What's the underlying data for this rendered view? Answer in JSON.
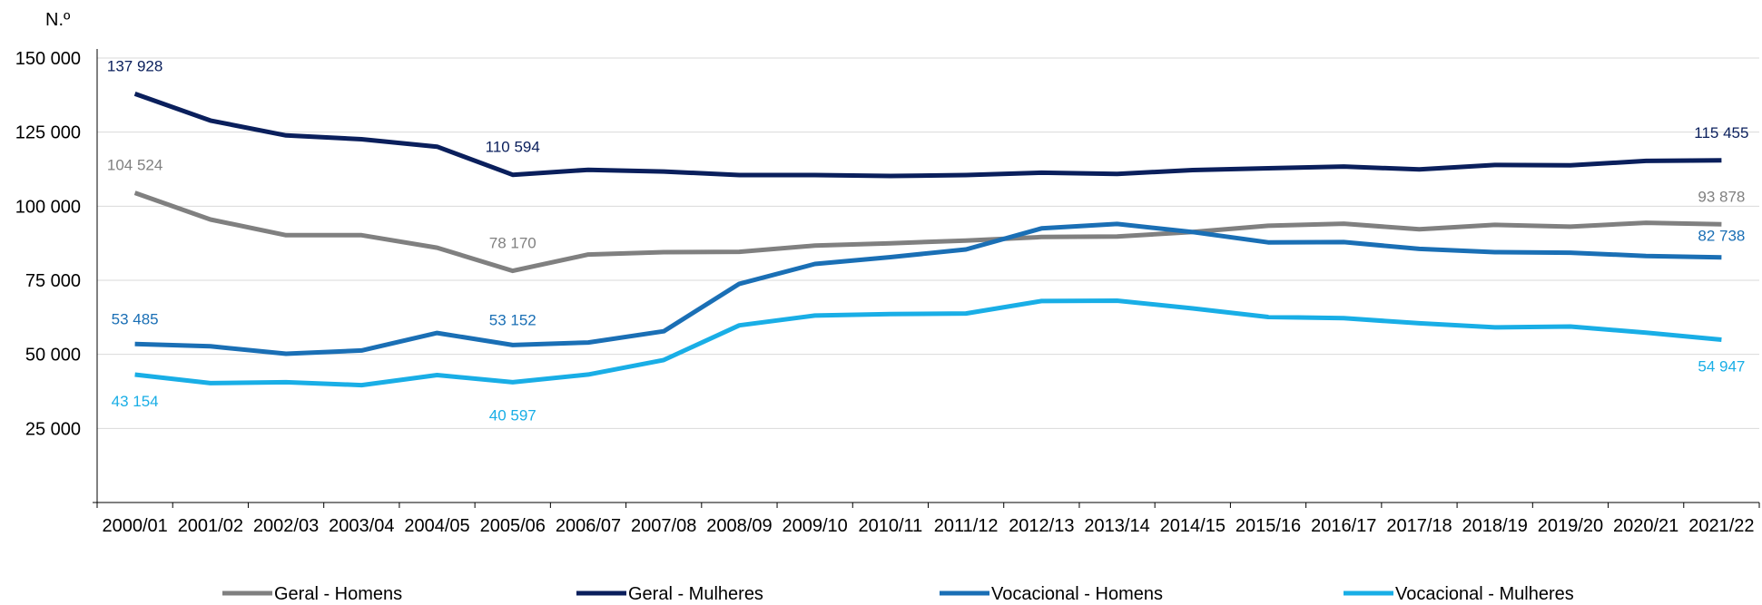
{
  "chart_data": {
    "type": "line",
    "unit_label": "N.º",
    "ylim": [
      0,
      150000
    ],
    "y_ticks": [
      "150 000",
      "125 000",
      "100 000",
      "75 000",
      "50 000",
      "25 000"
    ],
    "y_tick_values": [
      150000,
      125000,
      100000,
      75000,
      50000,
      25000
    ],
    "grid": true,
    "legend_position": "bottom",
    "categories": [
      "2000/01",
      "2001/02",
      "2002/03",
      "2003/04",
      "2004/05",
      "2005/06",
      "2006/07",
      "2007/08",
      "2008/09",
      "2009/10",
      "2010/11",
      "2011/12",
      "2012/13",
      "2013/14",
      "2014/15",
      "2015/16",
      "2016/17",
      "2017/18",
      "2018/19",
      "2019/20",
      "2020/21",
      "2021/22"
    ],
    "series": [
      {
        "name": "Geral - Homens",
        "color": "#808080",
        "values": [
          104524,
          95500,
          90200,
          90200,
          86000,
          78170,
          83700,
          84500,
          84600,
          86700,
          87500,
          88400,
          89600,
          89800,
          91300,
          93400,
          94100,
          92200,
          93700,
          93100,
          94400,
          93878
        ],
        "labels": [
          {
            "index": 0,
            "text": "104 524"
          },
          {
            "index": 5,
            "text": "78 170"
          },
          {
            "index": 21,
            "text": "93 878"
          }
        ]
      },
      {
        "name": "Geral - Mulheres",
        "color": "#0a1f5c",
        "values": [
          137928,
          128900,
          123900,
          122600,
          120100,
          110594,
          112300,
          111700,
          110500,
          110500,
          110200,
          110500,
          111300,
          110900,
          112200,
          112800,
          113400,
          112400,
          113900,
          113800,
          115300,
          115455
        ],
        "labels": [
          {
            "index": 0,
            "text": "137 928"
          },
          {
            "index": 5,
            "text": "110 594"
          },
          {
            "index": 21,
            "text": "115 455"
          }
        ]
      },
      {
        "name": "Vocacional - Homens",
        "color": "#1a6fb5",
        "values": [
          53485,
          52700,
          50200,
          51300,
          57200,
          53152,
          54000,
          57800,
          73800,
          80500,
          82800,
          85400,
          92500,
          94000,
          91300,
          87800,
          87900,
          85600,
          84500,
          84300,
          83200,
          82738
        ],
        "labels": [
          {
            "index": 0,
            "text": "53 485"
          },
          {
            "index": 5,
            "text": "53 152"
          },
          {
            "index": 21,
            "text": "82 738"
          }
        ]
      },
      {
        "name": "Vocacional - Mulheres",
        "color": "#19aee6",
        "values": [
          43154,
          40300,
          40600,
          39600,
          43000,
          40597,
          43200,
          48100,
          59800,
          63100,
          63600,
          63800,
          68000,
          68100,
          65500,
          62600,
          62200,
          60500,
          59100,
          59400,
          57300,
          54947
        ],
        "labels": [
          {
            "index": 0,
            "text": "43 154"
          },
          {
            "index": 5,
            "text": "40 597"
          },
          {
            "index": 21,
            "text": "54 947"
          }
        ]
      }
    ]
  }
}
